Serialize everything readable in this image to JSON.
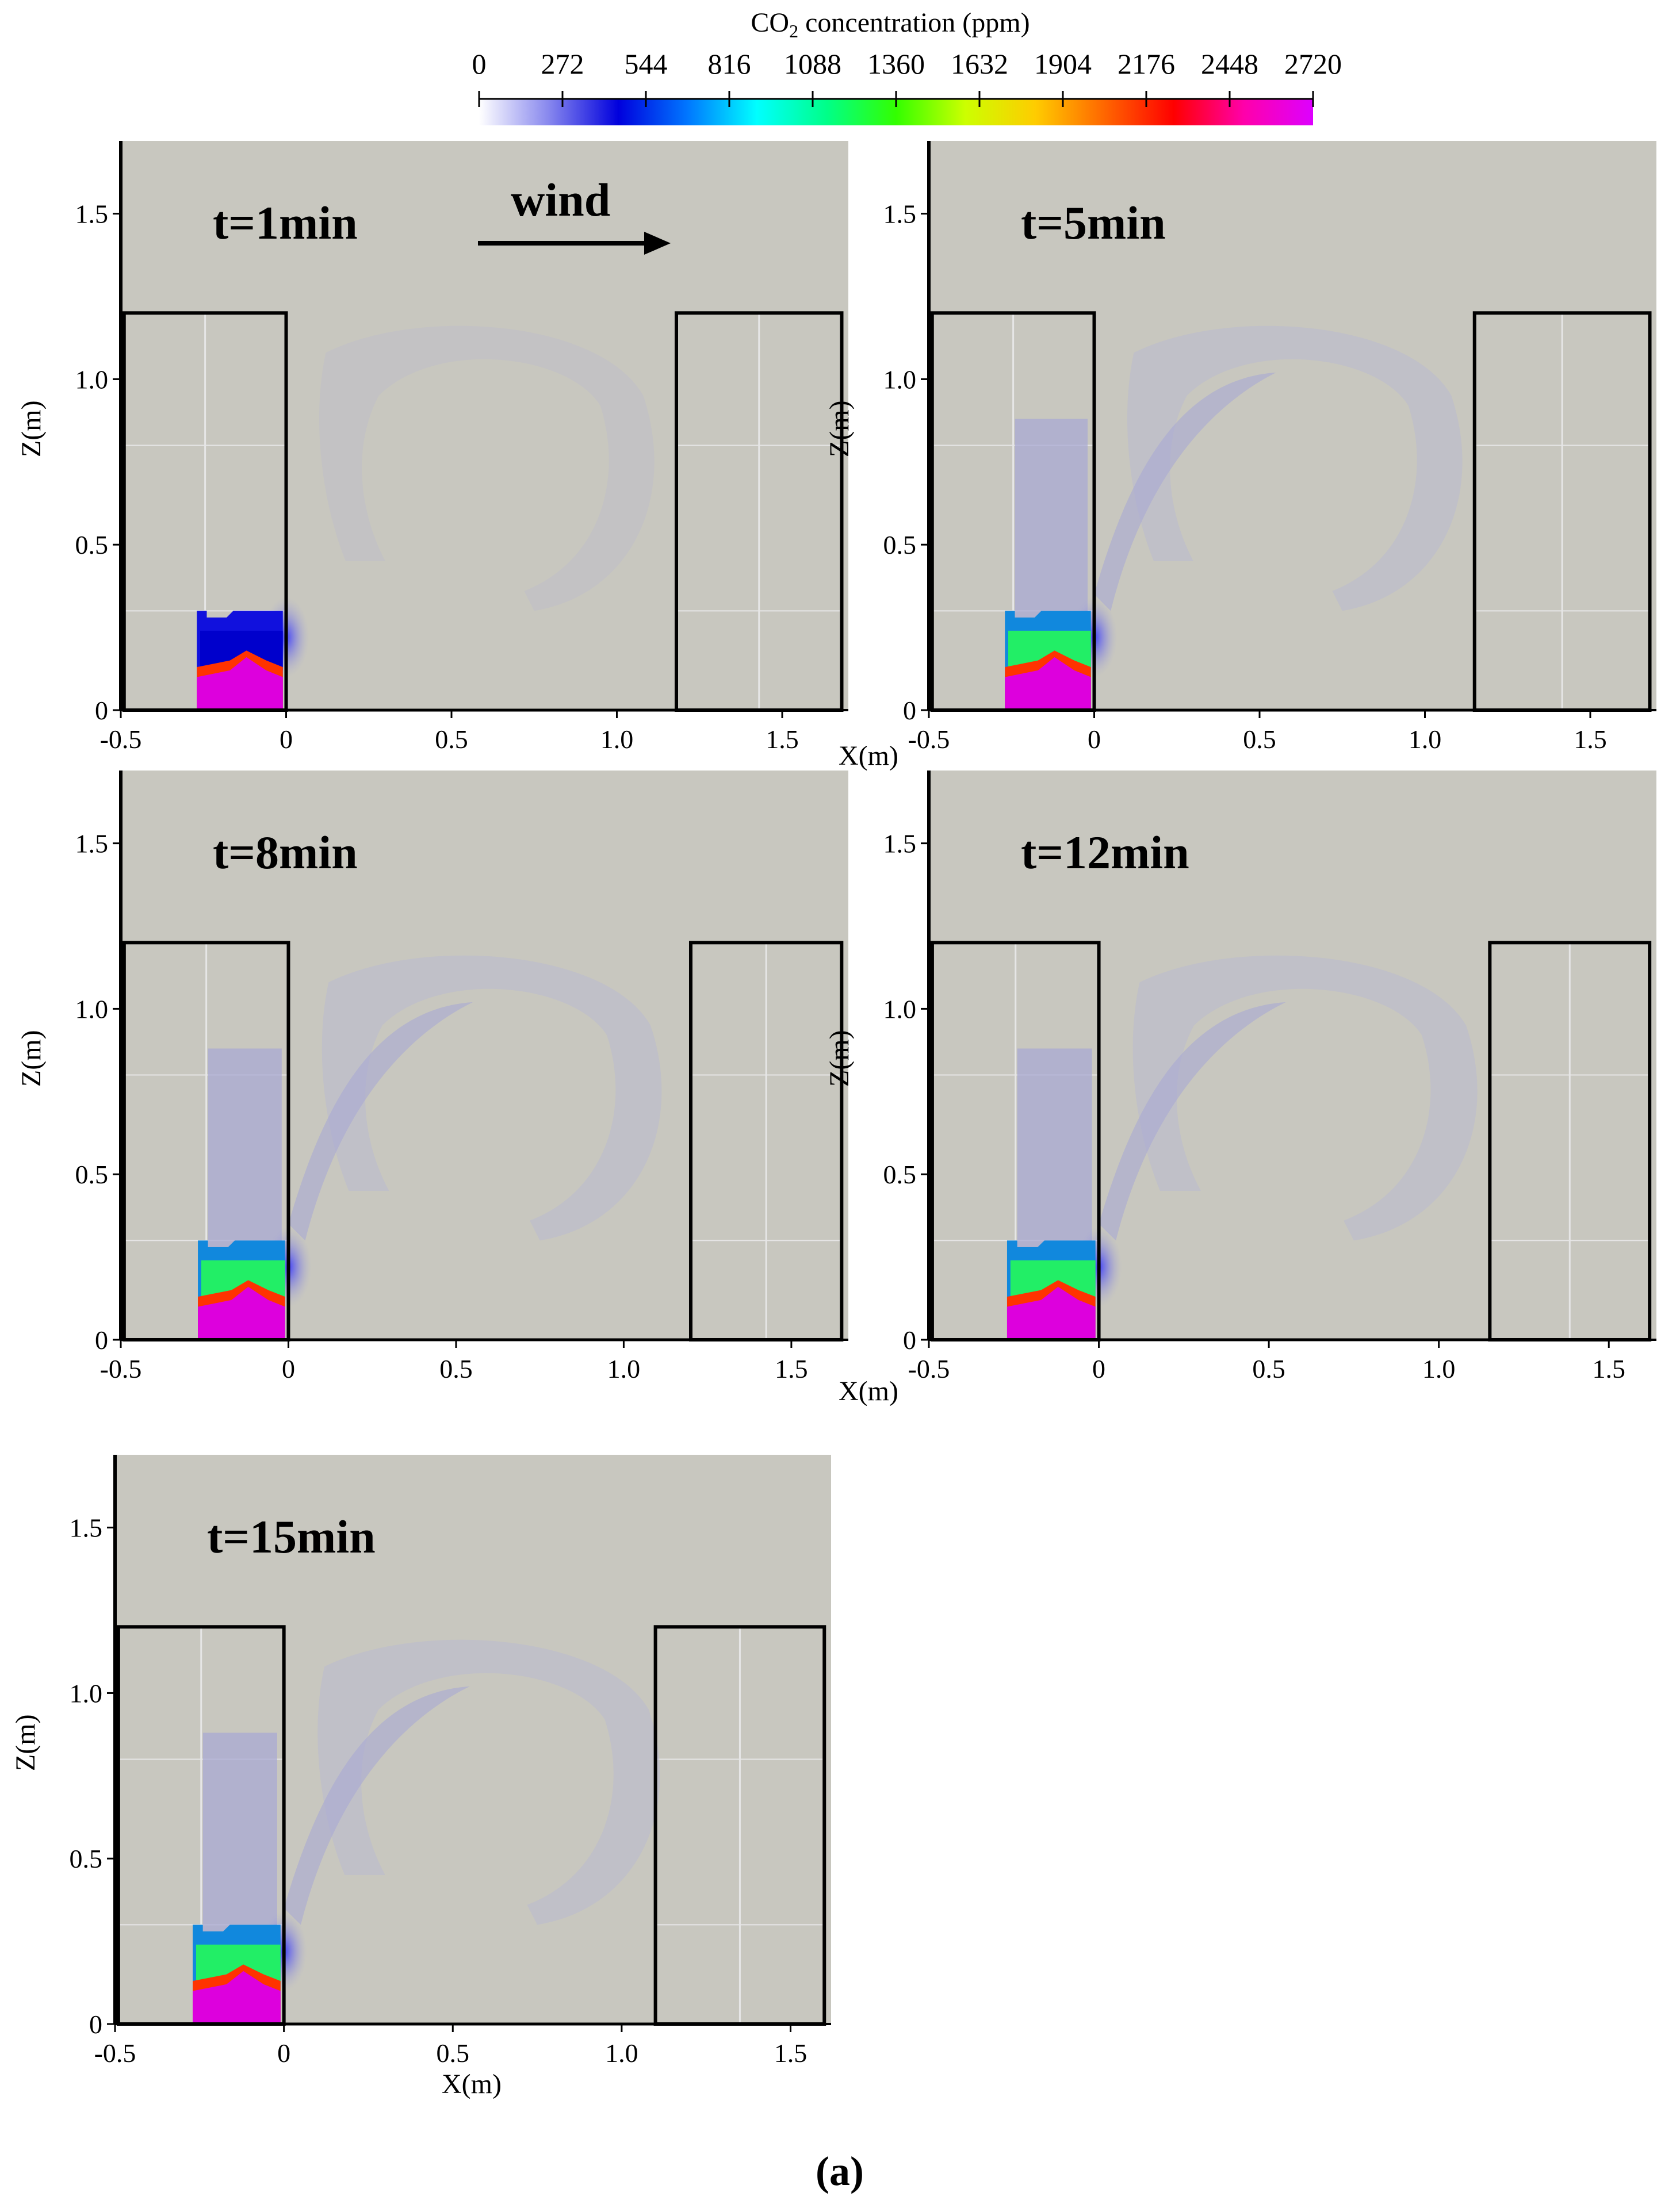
{
  "figure": {
    "caption": "(a)",
    "colorbar": {
      "title_prefix": "CO",
      "title_sub": "2",
      "title_suffix": " concentration (ppm)",
      "ticks": [
        "0",
        "272",
        "544",
        "816",
        "1088",
        "1360",
        "1632",
        "1904",
        "2176",
        "2448",
        "2720"
      ],
      "colors": [
        "#ffffff",
        "#8888ee",
        "#0000dd",
        "#0077ff",
        "#00ffff",
        "#00ff88",
        "#33ff00",
        "#ccff00",
        "#ffcc00",
        "#ff6600",
        "#ff0000",
        "#ff00aa",
        "#dd00ff"
      ]
    },
    "wind_label": "wind",
    "axis": {
      "x_title": "X(m)",
      "z_title": "Z(m)",
      "x_ticks": [
        "-0.5",
        "0",
        "0.5",
        "1.0",
        "1.5"
      ],
      "z_ticks": [
        "0",
        "0.5",
        "1.0",
        "1.5"
      ]
    },
    "panels": [
      {
        "time": "t=1min",
        "stage": 1
      },
      {
        "time": "t=5min",
        "stage": 2
      },
      {
        "time": "t=8min",
        "stage": 3
      },
      {
        "time": "t=12min",
        "stage": 2
      },
      {
        "time": "t=15min",
        "stage": 3
      }
    ],
    "colors": {
      "background": "#c8c7bf",
      "plume_light": "#b9b9cf",
      "plume_mid": "#a9a9d3",
      "outline": "#000000"
    }
  }
}
